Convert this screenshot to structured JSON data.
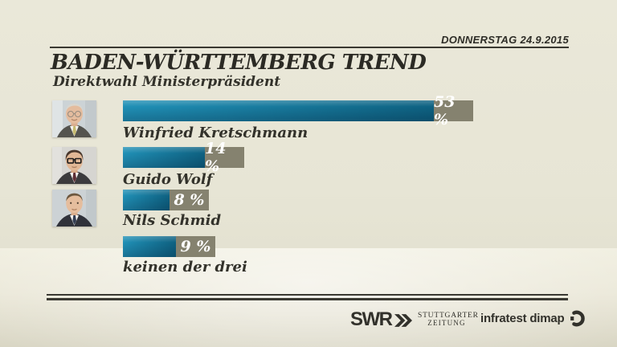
{
  "header": {
    "date": "DONNERSTAG 24.9.2015",
    "title": "BADEN-WÜRTTEMBERG TREND",
    "subtitle": "Direktwahl Ministerpräsident"
  },
  "chart_data": {
    "type": "bar",
    "orientation": "horizontal",
    "title": "BADEN-WÜRTTEMBERG TREND",
    "subtitle": "Direktwahl Ministerpräsident",
    "unit": "%",
    "categories": [
      "Winfried Kretschmann",
      "Guido Wolf",
      "Nils Schmid",
      "keinen der drei"
    ],
    "values": [
      53,
      14,
      8,
      9
    ],
    "value_labels": [
      "53 %",
      "14 %",
      "8 %",
      "9 %"
    ],
    "photos": [
      "Winfried Kretschmann portrait",
      "Guido Wolf portrait",
      "Nils Schmid portrait",
      null
    ],
    "xlim": [
      0,
      60
    ],
    "grid": false,
    "legend": "none"
  },
  "footer": {
    "swr_label": "SWR",
    "stuttgarter_line1": "STUTTGARTER",
    "stuttgarter_line2": "ZEITUNG",
    "infratest_label": "infratest dimap"
  },
  "icons": {
    "swr_chevrons": "»",
    "dimap_mark": "broken-ring"
  },
  "theme": {
    "background": "#e8e6d6",
    "bar_gradient_left": "#2090b6",
    "bar_gradient_right": "#0e6181",
    "value_box": "#85826f",
    "value_text": "#ffffff",
    "ink": "#2e2d27"
  }
}
